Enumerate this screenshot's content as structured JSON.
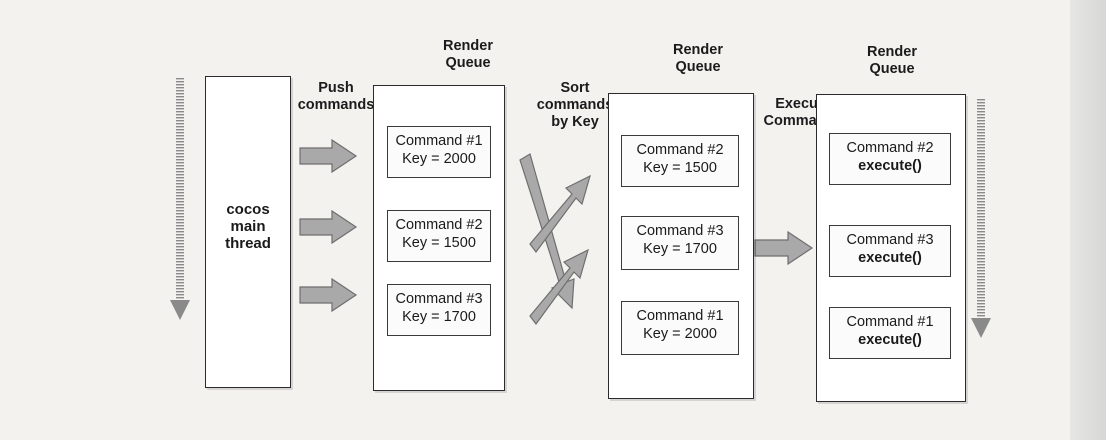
{
  "main_thread": {
    "line1": "cocos",
    "line2": "main",
    "line3": "thread"
  },
  "labels": {
    "push_line1": "Push",
    "push_line2": "commands",
    "sort_line1": "Sort",
    "sort_line2": "commands",
    "sort_line3": "by Key",
    "execute_line1": "Execute",
    "execute_line2": "Commands"
  },
  "queues": [
    {
      "title_line1": "Render",
      "title_line2": "Queue",
      "commands": [
        {
          "name": "Command #1",
          "detail": "Key = 2000"
        },
        {
          "name": "Command #2",
          "detail": "Key = 1500"
        },
        {
          "name": "Command #3",
          "detail": "Key = 1700"
        }
      ]
    },
    {
      "title_line1": "Render",
      "title_line2": "Queue",
      "commands": [
        {
          "name": "Command #2",
          "detail": "Key = 1500"
        },
        {
          "name": "Command #3",
          "detail": "Key = 1700"
        },
        {
          "name": "Command #1",
          "detail": "Key = 2000"
        }
      ]
    },
    {
      "title_line1": "Render",
      "title_line2": "Queue",
      "commands": [
        {
          "name": "Command #2",
          "detail": "execute()"
        },
        {
          "name": "Command #3",
          "detail": "execute()"
        },
        {
          "name": "Command #1",
          "detail": "execute()"
        }
      ]
    }
  ],
  "colors": {
    "arrow_fill": "#a9a9a9",
    "arrow_stroke": "#6e6e6e",
    "box_border": "#2b2b2b"
  }
}
